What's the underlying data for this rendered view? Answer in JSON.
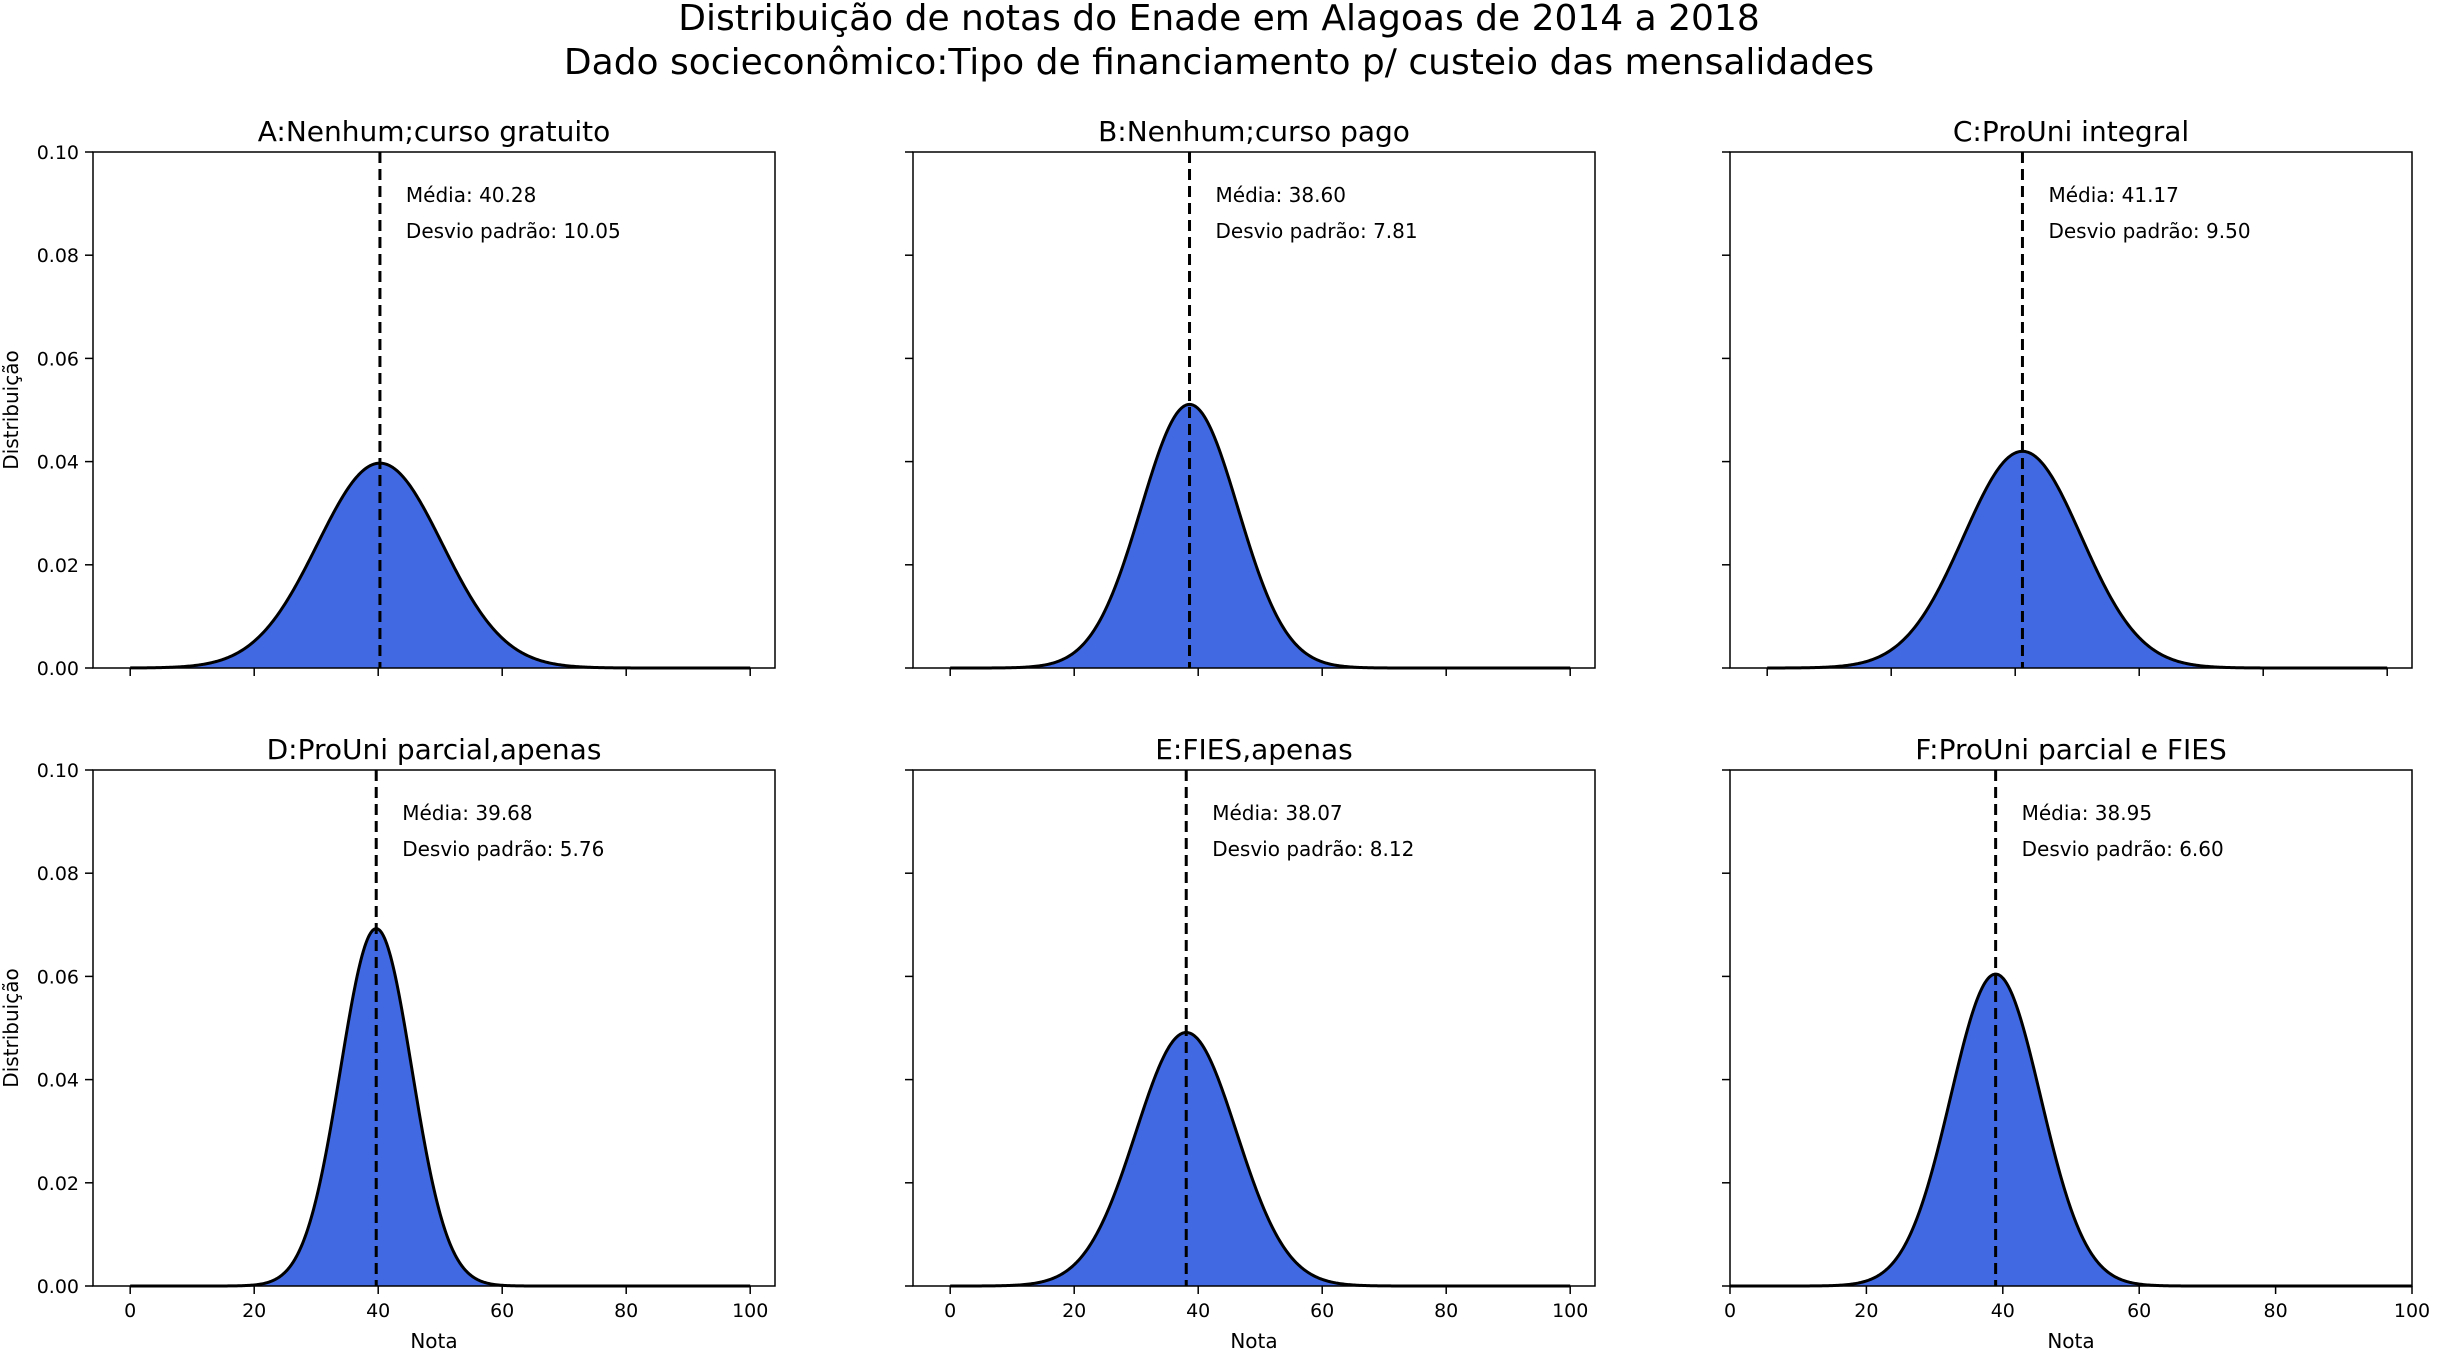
{
  "figure": {
    "title_line1": "Distribuição de notas do Enade em Alagoas de 2014 a 2018",
    "title_line2": "Dado socieconômico:Tipo de financiamento p/ custeio das mensalidades"
  },
  "colors": {
    "fill": "#4169e1",
    "curve": "#000000",
    "mean_line": "#000000"
  },
  "chart_data": [
    {
      "type": "area",
      "title": "A:Nenhum;curso gratuito",
      "xlabel": "",
      "ylabel": "Distribuição",
      "mean": 40.28,
      "std": 10.05,
      "mean_text": "Média: 40.28",
      "std_text": "Desvio padrão: 10.05",
      "xlim": [
        -6,
        104
      ],
      "ylim": [
        0,
        0.1
      ],
      "xticks": [
        0,
        20,
        40,
        60,
        80,
        100
      ],
      "xtick_labels_visible": false,
      "yticks": [
        "0.00",
        "0.02",
        "0.04",
        "0.06",
        "0.08",
        "0.10"
      ],
      "ytick_labels_visible": true
    },
    {
      "type": "area",
      "title": "B:Nenhum;curso pago",
      "xlabel": "",
      "ylabel": "",
      "mean": 38.6,
      "std": 7.81,
      "mean_text": "Média: 38.60",
      "std_text": "Desvio padrão: 7.81",
      "xlim": [
        -6,
        104
      ],
      "ylim": [
        0,
        0.1
      ],
      "xticks": [
        0,
        20,
        40,
        60,
        80,
        100
      ],
      "xtick_labels_visible": false,
      "yticks": [
        "0.00",
        "0.02",
        "0.04",
        "0.06",
        "0.08",
        "0.10"
      ],
      "ytick_labels_visible": false
    },
    {
      "type": "area",
      "title": "C:ProUni integral",
      "xlabel": "",
      "ylabel": "",
      "mean": 41.17,
      "std": 9.5,
      "mean_text": "Média: 41.17",
      "std_text": "Desvio padrão: 9.50",
      "xlim": [
        -6,
        104
      ],
      "ylim": [
        0,
        0.1
      ],
      "xticks": [
        0,
        20,
        40,
        60,
        80,
        100
      ],
      "xtick_labels_visible": false,
      "yticks": [
        "0.00",
        "0.02",
        "0.04",
        "0.06",
        "0.08",
        "0.10"
      ],
      "ytick_labels_visible": false
    },
    {
      "type": "area",
      "title": "D:ProUni parcial,apenas",
      "xlabel": "Nota",
      "ylabel": "Distribuição",
      "mean": 39.68,
      "std": 5.76,
      "mean_text": "Média: 39.68",
      "std_text": "Desvio padrão: 5.76",
      "xlim": [
        -6,
        104
      ],
      "ylim": [
        0,
        0.1
      ],
      "xticks": [
        0,
        20,
        40,
        60,
        80,
        100
      ],
      "xtick_labels_visible": true,
      "yticks": [
        "0.00",
        "0.02",
        "0.04",
        "0.06",
        "0.08",
        "0.10"
      ],
      "ytick_labels_visible": true
    },
    {
      "type": "area",
      "title": "E:FIES,apenas",
      "xlabel": "Nota",
      "ylabel": "",
      "mean": 38.07,
      "std": 8.12,
      "mean_text": "Média: 38.07",
      "std_text": "Desvio padrão: 8.12",
      "xlim": [
        -6,
        104
      ],
      "ylim": [
        0,
        0.1
      ],
      "xticks": [
        0,
        20,
        40,
        60,
        80,
        100
      ],
      "xtick_labels_visible": true,
      "yticks": [
        "0.00",
        "0.02",
        "0.04",
        "0.06",
        "0.08",
        "0.10"
      ],
      "ytick_labels_visible": false
    },
    {
      "type": "area",
      "title": "F:ProUni parcial e FIES",
      "xlabel": "Nota",
      "ylabel": "",
      "mean": 38.95,
      "std": 6.6,
      "mean_text": "Média: 38.95",
      "std_text": "Desvio padrão: 6.60",
      "xlim": [
        0,
        100
      ],
      "ylim": [
        0,
        0.1
      ],
      "xticks": [
        0,
        20,
        40,
        60,
        80,
        100
      ],
      "xtick_labels_visible": true,
      "yticks": [
        "0.00",
        "0.02",
        "0.04",
        "0.06",
        "0.08",
        "0.10"
      ],
      "ytick_labels_visible": false
    }
  ]
}
